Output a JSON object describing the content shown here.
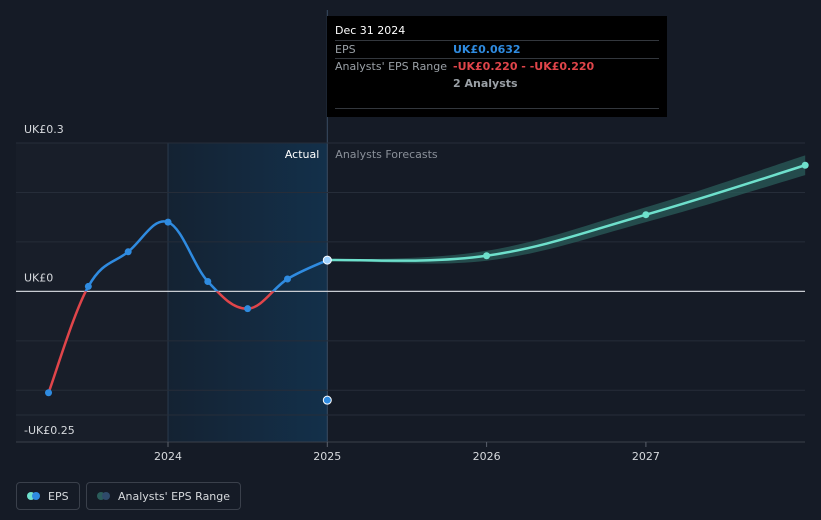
{
  "tooltip": {
    "date": "Dec 31 2024",
    "eps_label": "EPS",
    "eps_value": "UK£0.0632",
    "range_label": "Analysts' EPS Range",
    "range_value": "-UK£0.220 - -UK£0.220",
    "analysts": "2 Analysts"
  },
  "legend": {
    "eps_label": "EPS",
    "range_label": "Analysts' EPS Range"
  },
  "colors": {
    "eps_positive": "#2f8be0",
    "eps_negative": "#e0454a",
    "forecast": "#6ee0cc",
    "forecast_band": "#2a5c5a",
    "past_highlight": "#13304a",
    "tooltip_eps": "#2f8be0",
    "tooltip_range": "#e0454a"
  },
  "chart_data": {
    "type": "line",
    "ylim": [
      -0.25,
      0.3
    ],
    "y_ticks": [
      {
        "value": 0.3,
        "label": "UK£0.3"
      },
      {
        "value": 0,
        "label": "UK£0"
      },
      {
        "value": -0.25,
        "label": "-UK£0.25"
      }
    ],
    "x_ticks": [
      {
        "value": 2024,
        "label": "2024"
      },
      {
        "value": 2025,
        "label": "2025"
      },
      {
        "value": 2026,
        "label": "2026"
      },
      {
        "value": 2027,
        "label": "2027"
      }
    ],
    "xlim": [
      2022.9,
      2028.0
    ],
    "divider_x": 2025.0,
    "highlight_start_x": 2024.0,
    "section_labels": {
      "actual": "Actual",
      "forecast": "Analysts Forecasts"
    },
    "series": [
      {
        "name": "EPS",
        "points": [
          {
            "x": 2023.25,
            "y": -0.205
          },
          {
            "x": 2023.5,
            "y": 0.01
          },
          {
            "x": 2023.75,
            "y": 0.08
          },
          {
            "x": 2024.0,
            "y": 0.14
          },
          {
            "x": 2024.25,
            "y": 0.02
          },
          {
            "x": 2024.5,
            "y": -0.035
          },
          {
            "x": 2024.75,
            "y": 0.025
          },
          {
            "x": 2025.0,
            "y": 0.0632
          }
        ]
      },
      {
        "name": "Analysts Forecasts",
        "points": [
          {
            "x": 2025.0,
            "y": 0.0632
          },
          {
            "x": 2026.0,
            "y": 0.072
          },
          {
            "x": 2027.0,
            "y": 0.155
          },
          {
            "x": 2028.0,
            "y": 0.255
          }
        ],
        "band_low": [
          0.0632,
          0.062,
          0.14,
          0.235
        ],
        "band_high": [
          0.0632,
          0.082,
          0.17,
          0.275
        ]
      },
      {
        "name": "Analysts' EPS Range",
        "points": [
          {
            "x": 2025.0,
            "y": -0.22
          }
        ]
      }
    ]
  }
}
